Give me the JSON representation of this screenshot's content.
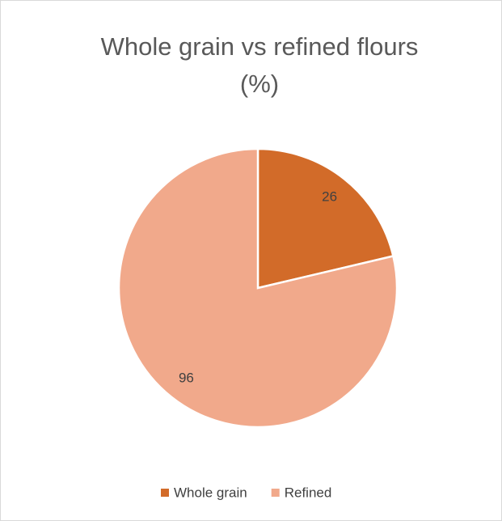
{
  "chart_data": {
    "type": "pie",
    "title": "Whole grain vs refined flours (%)",
    "categories": [
      "Whole grain",
      "Refined"
    ],
    "values": [
      26,
      96
    ],
    "colors": [
      "#d26b29",
      "#f1a98b"
    ],
    "legend": "bottom"
  }
}
